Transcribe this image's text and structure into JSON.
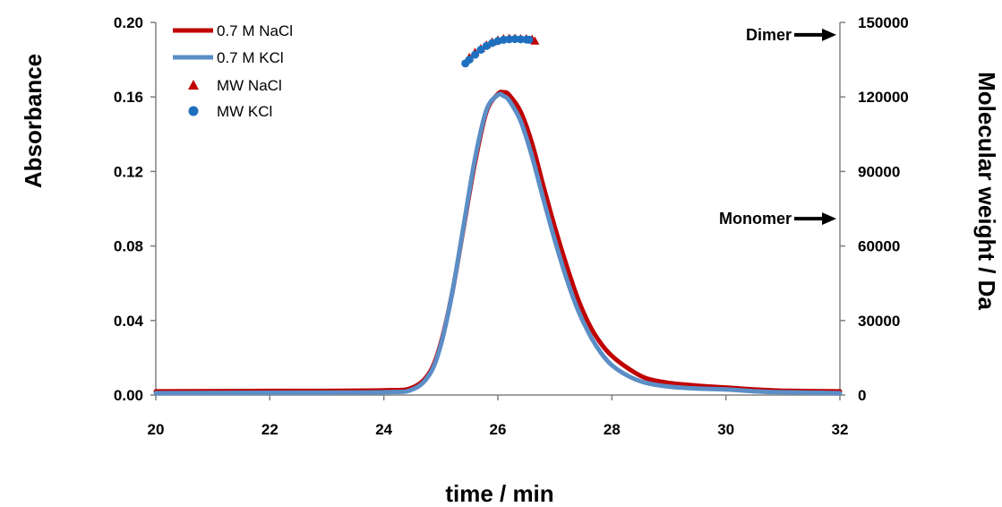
{
  "chart_data": {
    "type": "line",
    "xlabel": "time / min",
    "ylabel": "Absorbance",
    "y2label": "Molecular weight / Da",
    "xlim": [
      20,
      32
    ],
    "ylim": [
      0,
      0.2
    ],
    "y2lim": [
      0,
      150000
    ],
    "x_ticks": [
      "20",
      "22",
      "24",
      "26",
      "28",
      "30",
      "32"
    ],
    "y_ticks": [
      "0.00",
      "0.04",
      "0.08",
      "0.12",
      "0.16",
      "0.20"
    ],
    "y2_ticks": [
      "0",
      "30000",
      "60000",
      "90000",
      "120000",
      "150000"
    ],
    "grid": false,
    "legend_position": "top-left",
    "series": [
      {
        "name": "0.7 M NaCl",
        "kind": "line",
        "axis": "left",
        "color": "#c00000",
        "x": [
          20,
          22,
          24,
          24.5,
          24.8,
          25.0,
          25.2,
          25.4,
          25.6,
          25.8,
          26.0,
          26.1,
          26.2,
          26.4,
          26.6,
          26.8,
          27.0,
          27.2,
          27.4,
          27.6,
          27.8,
          28.0,
          28.3,
          28.6,
          29.0,
          29.5,
          30.0,
          30.5,
          31.0,
          32
        ],
        "y": [
          0.002,
          0.0022,
          0.0025,
          0.004,
          0.012,
          0.028,
          0.055,
          0.09,
          0.125,
          0.152,
          0.1615,
          0.1625,
          0.161,
          0.152,
          0.135,
          0.112,
          0.09,
          0.07,
          0.052,
          0.038,
          0.028,
          0.021,
          0.014,
          0.009,
          0.0065,
          0.005,
          0.004,
          0.003,
          0.0023,
          0.002
        ]
      },
      {
        "name": "0.7 M KCl",
        "kind": "line",
        "axis": "left",
        "color": "#5b8ec6",
        "x": [
          20,
          22,
          24,
          24.5,
          24.8,
          25.0,
          25.2,
          25.4,
          25.6,
          25.8,
          26.0,
          26.1,
          26.2,
          26.4,
          26.6,
          26.8,
          27.0,
          27.2,
          27.4,
          27.6,
          27.8,
          28.0,
          28.3,
          28.6,
          29.0,
          29.5,
          30.0,
          30.5,
          31.0,
          32
        ],
        "y": [
          0.001,
          0.0012,
          0.0015,
          0.003,
          0.011,
          0.027,
          0.055,
          0.091,
          0.127,
          0.153,
          0.161,
          0.1605,
          0.158,
          0.147,
          0.128,
          0.105,
          0.083,
          0.063,
          0.046,
          0.033,
          0.023,
          0.016,
          0.01,
          0.0065,
          0.0045,
          0.0035,
          0.003,
          0.002,
          0.0015,
          0.001
        ]
      },
      {
        "name": "MW NaCl",
        "kind": "markers",
        "marker": "triangle",
        "axis": "right",
        "color": "#c00000",
        "x": [
          25.5,
          25.6,
          25.7,
          25.8,
          25.9,
          26.0,
          26.1,
          26.2,
          26.3,
          26.4,
          26.5,
          26.6,
          26.65
        ],
        "y": [
          136000,
          138000,
          139500,
          141000,
          142200,
          143000,
          143500,
          143700,
          143700,
          143500,
          143500,
          143300,
          142500
        ]
      },
      {
        "name": "MW KCl",
        "kind": "markers",
        "marker": "circle",
        "axis": "right",
        "color": "#1f6fbf",
        "x": [
          25.43,
          25.5,
          25.6,
          25.7,
          25.8,
          25.9,
          26.0,
          26.1,
          26.2,
          26.3,
          26.4,
          26.5,
          26.55
        ],
        "y": [
          133500,
          135000,
          137000,
          139000,
          140500,
          141700,
          142500,
          143000,
          143200,
          143300,
          143200,
          143100,
          143000
        ]
      }
    ],
    "annotations": [
      {
        "text": "Dimer",
        "axis": "right",
        "y": 145000
      },
      {
        "text": "Monomer",
        "axis": "right",
        "y": 71000
      }
    ]
  }
}
